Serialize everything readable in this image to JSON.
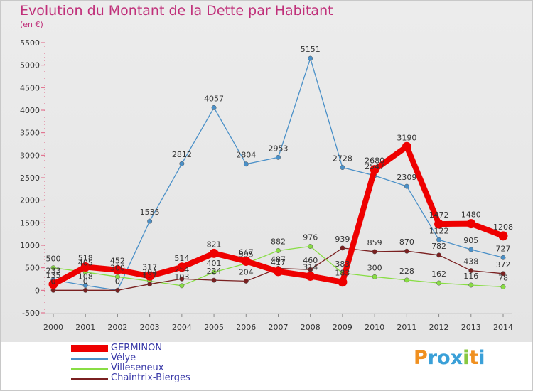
{
  "chart_data": {
    "type": "line",
    "title": "Evolution du Montant de la Dette par Habitant",
    "subtitle": "(en €)",
    "xlabel": "",
    "ylabel": "",
    "ylim": [
      -500,
      5500
    ],
    "yticks": [
      -500,
      0,
      500,
      1000,
      1500,
      2000,
      2500,
      3000,
      3500,
      4000,
      4500,
      5000,
      5500
    ],
    "x": [
      2000,
      2001,
      2002,
      2003,
      2004,
      2005,
      2006,
      2007,
      2008,
      2009,
      2010,
      2011,
      2012,
      2013,
      2014
    ],
    "grid": false,
    "legend_position": "bottom-left",
    "series": [
      {
        "name": "GERMINON",
        "color": "#ee0000",
        "values": [
          135,
          518,
          452,
          317,
          514,
          821,
          647,
          417,
          314,
          183,
          2680,
          3190,
          1472,
          1480,
          1208
        ],
        "labels": [
          "135",
          "518",
          "452",
          "317",
          "514",
          "821",
          "647",
          "417",
          "314",
          "183",
          "2680",
          "3190",
          "1472",
          "1480",
          "1208"
        ]
      },
      {
        "name": "Vélye",
        "color": "#4a90c8",
        "values": [
          233,
          108,
          0,
          1535,
          2812,
          4057,
          2804,
          2953,
          5151,
          2728,
          2547,
          2309,
          1122,
          905,
          727
        ],
        "labels": [
          "233",
          "108",
          "0",
          "1535",
          "2812",
          "4057",
          "2804",
          "2953",
          "5151",
          "2728",
          "2547",
          "2309",
          "1122",
          "905",
          "727"
        ]
      },
      {
        "name": "Villeseneux",
        "color": "#88dd44",
        "values": [
          500,
          405,
          300,
          204,
          103,
          401,
          595,
          882,
          976,
          383,
          300,
          228,
          162,
          116,
          78
        ],
        "labels": [
          "500",
          "405",
          "300",
          "204",
          "103",
          "401",
          "595",
          "882",
          "976",
          "383",
          "300",
          "228",
          "162",
          "116",
          "78"
        ]
      },
      {
        "name": "Chaintrix-Bierges",
        "color": "#7a2020",
        "values": [
          0,
          0,
          0,
          137,
          254,
          224,
          204,
          487,
          460,
          939,
          859,
          870,
          782,
          438,
          372
        ],
        "labels": [
          "0",
          "0",
          "0",
          "137",
          "254",
          "224",
          "204",
          "487",
          "460",
          "939",
          "859",
          "870",
          "782",
          "438",
          "372"
        ]
      }
    ]
  },
  "logo": {
    "text": "Proxiti",
    "letters": [
      "P",
      "r",
      "o",
      "x",
      "i",
      "t",
      "i"
    ],
    "colors": [
      "#f09020",
      "#3aa0d8",
      "#3aa0d8",
      "#3aa0d8",
      "#88c840",
      "#f09020",
      "#3aa0d8"
    ]
  }
}
